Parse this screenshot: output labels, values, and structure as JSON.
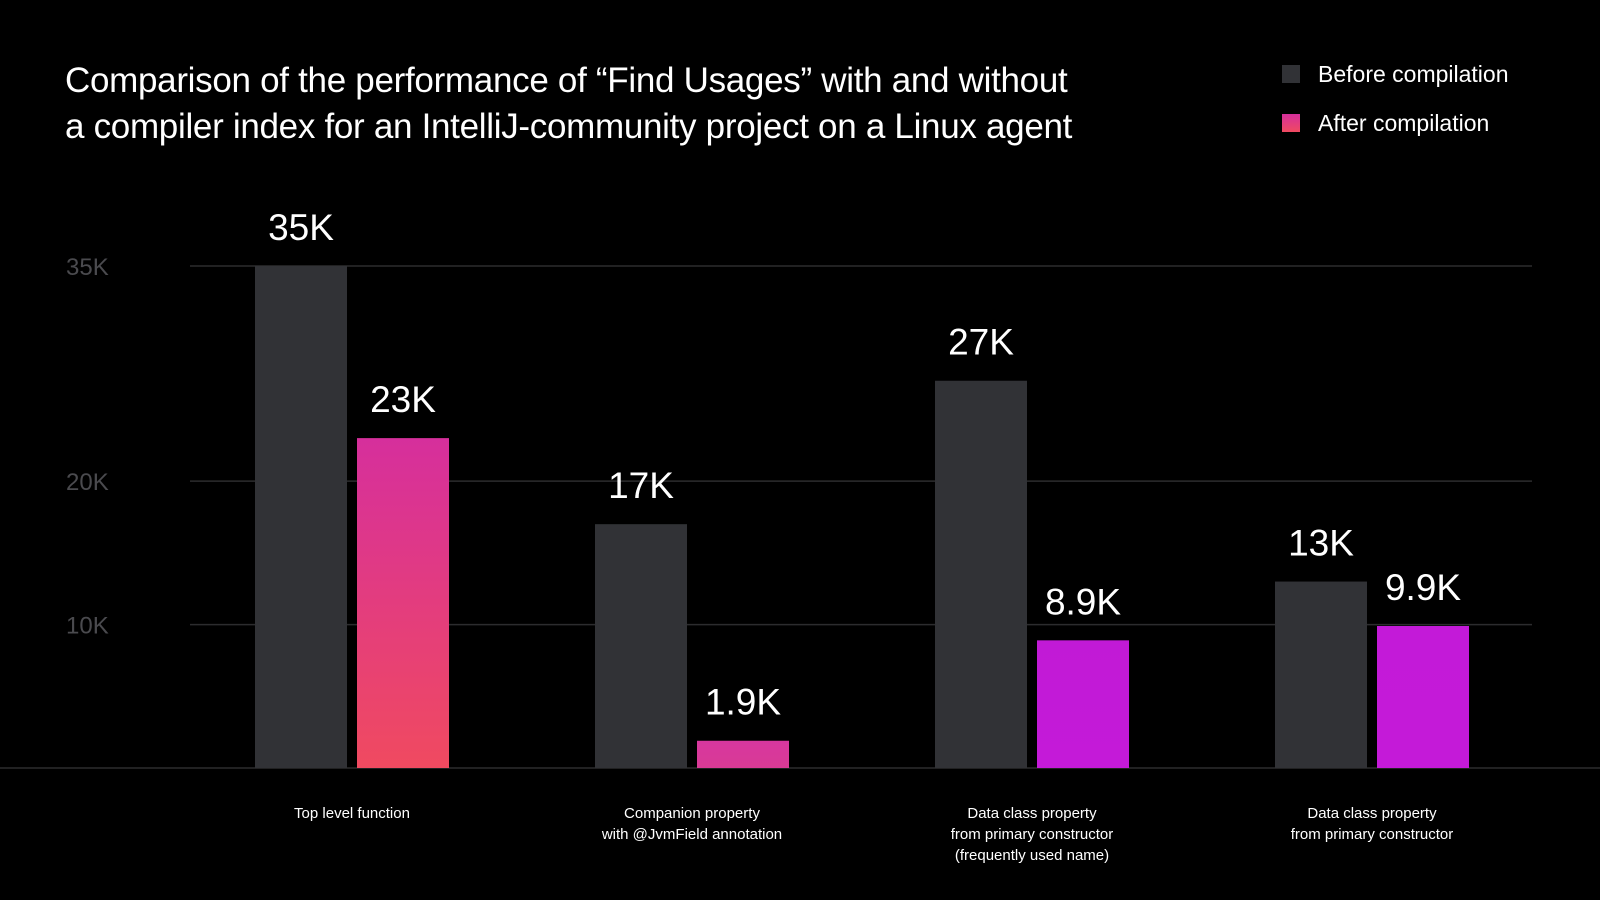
{
  "chart_data": {
    "type": "bar",
    "title": "Comparison of the performance of “Find Usages” with and without a compiler index for an IntelliJ-community project on a Linux agent",
    "title_lines": [
      "Comparison of the performance of “Find Usages” with and without",
      "a compiler index for an IntelliJ-community project on a Linux agent"
    ],
    "categories": [
      [
        "Top level function"
      ],
      [
        "Companion property",
        "with @JvmField annotation"
      ],
      [
        "Data class property",
        "from primary constructor",
        "(frequently used name)"
      ],
      [
        "Data class property",
        "from primary constructor"
      ]
    ],
    "series": [
      {
        "name": "Before compilation",
        "values": [
          35000,
          17000,
          27000,
          13000
        ],
        "labels": [
          "35K",
          "17K",
          "27K",
          "13K"
        ],
        "color": "#313236"
      },
      {
        "name": "After compilation",
        "values": [
          23000,
          1900,
          8900,
          9900
        ],
        "labels": [
          "23K",
          "1.9K",
          "8.9K",
          "9.9K"
        ],
        "gradients": [
          [
            "#d62f9c",
            "#f04a60"
          ],
          [
            "#d7379f",
            "#d93a95"
          ],
          [
            "#c11ad6",
            "#c41ad8"
          ],
          [
            "#c31ad8",
            "#c41ad8"
          ]
        ],
        "color": "#e0338a"
      }
    ],
    "y_ticks": [
      10000,
      20000,
      35000
    ],
    "y_tick_labels": [
      "10K",
      "20K",
      "35K"
    ],
    "ylim": [
      0,
      35000
    ],
    "grid": true,
    "legend_position": "top-right",
    "xlabel": "",
    "ylabel": ""
  },
  "colors": {
    "background": "#000000",
    "gridline": "#2c2c2e",
    "baseline": "#2c2c2e",
    "tick_text": "#4a4a4e",
    "text": "#ffffff"
  }
}
